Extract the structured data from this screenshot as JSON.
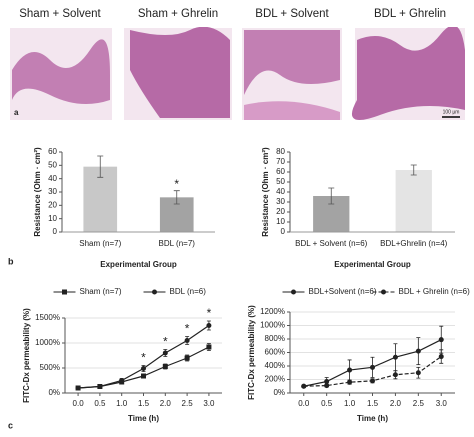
{
  "panel_a": {
    "letter": "a",
    "labels": [
      "Sham + Solvent",
      "Sham + Ghrelin",
      "BDL + Solvent",
      "BDL + Ghrelin"
    ],
    "scale_bar": "100 µm"
  },
  "panel_b": {
    "letter": "b"
  },
  "panel_c": {
    "letter": "c"
  },
  "chart_data": [
    {
      "type": "bar",
      "xlabel": "Experimental Group",
      "ylabel": "Resistance (Ohm · cm²)",
      "categories": [
        "Sham (n=7)",
        "BDL (n=7)"
      ],
      "values": [
        49,
        26
      ],
      "errors": [
        8,
        5
      ],
      "colors": [
        "#c8c8c8",
        "#a3a3a3"
      ],
      "ylim": [
        0,
        60
      ],
      "yticks": [
        0,
        10,
        20,
        30,
        40,
        50,
        60
      ],
      "significance_label": "*",
      "significant_categories": [
        "BDL (n=7)"
      ]
    },
    {
      "type": "bar",
      "xlabel": "Experimental Group",
      "ylabel": "Resistance (Ohm · cm²)",
      "categories": [
        "BDL + Solvent (n=6)",
        "BDL+Ghrelin (n=4)"
      ],
      "values": [
        36,
        62
      ],
      "errors": [
        8,
        5
      ],
      "colors": [
        "#a3a3a3",
        "#e4e4e4"
      ],
      "ylim": [
        0,
        80
      ],
      "yticks": [
        0,
        10,
        20,
        30,
        40,
        50,
        60,
        70,
        80
      ]
    },
    {
      "type": "line",
      "xlabel": "Time (h)",
      "ylabel": "FITC-Dx permeability (%)",
      "legend": "top",
      "grid": true,
      "x": [
        0,
        0.5,
        1,
        1.5,
        2,
        2.5,
        3
      ],
      "xlim": [
        -0.3,
        3.3
      ],
      "xticks": [
        {
          "value": 0,
          "label": "0.0"
        },
        {
          "value": 0.5,
          "label": "0.5"
        },
        {
          "value": 1,
          "label": "1.0"
        },
        {
          "value": 1.5,
          "label": "1.5"
        },
        {
          "value": 2,
          "label": "2.0"
        },
        {
          "value": 2.5,
          "label": "2.5"
        },
        {
          "value": 3,
          "label": "3.0"
        }
      ],
      "ylim": [
        0,
        1500
      ],
      "yticks": [
        {
          "value": 0,
          "label": "0%"
        },
        {
          "value": 500,
          "label": "500%"
        },
        {
          "value": 1000,
          "label": "1000%"
        },
        {
          "value": 1500,
          "label": "1500%"
        }
      ],
      "series": [
        {
          "name": "Sham (n=7)",
          "color": "#222222",
          "marker": "square",
          "dashed": false,
          "values": [
            100,
            130,
            220,
            340,
            530,
            700,
            920
          ],
          "errors": [
            10,
            15,
            30,
            40,
            50,
            60,
            70
          ]
        },
        {
          "name": "BDL (n=6)",
          "color": "#222222",
          "marker": "circle",
          "dashed": false,
          "values": [
            100,
            130,
            250,
            490,
            800,
            1050,
            1350
          ],
          "errors": [
            10,
            15,
            40,
            60,
            70,
            80,
            90
          ]
        }
      ],
      "significance_label": "*",
      "significant_x": [
        1.5,
        2,
        2.5,
        3
      ]
    },
    {
      "type": "line",
      "xlabel": "Time (h)",
      "ylabel": "FITC-Dx permeability (%)",
      "legend": "top",
      "grid": true,
      "x": [
        0,
        0.5,
        1,
        1.5,
        2,
        2.5,
        3
      ],
      "xlim": [
        -0.3,
        3.3
      ],
      "xticks": [
        {
          "value": 0,
          "label": "0.0"
        },
        {
          "value": 0.5,
          "label": "0.5"
        },
        {
          "value": 1,
          "label": "1.0"
        },
        {
          "value": 1.5,
          "label": "1.5"
        },
        {
          "value": 2,
          "label": "2.0"
        },
        {
          "value": 2.5,
          "label": "2.5"
        },
        {
          "value": 3,
          "label": "3.0"
        }
      ],
      "ylim": [
        0,
        1200
      ],
      "yticks": [
        {
          "value": 0,
          "label": "0%"
        },
        {
          "value": 200,
          "label": "200%"
        },
        {
          "value": 400,
          "label": "400%"
        },
        {
          "value": 600,
          "label": "600%"
        },
        {
          "value": 800,
          "label": "800%"
        },
        {
          "value": 1000,
          "label": "1000%"
        },
        {
          "value": 1200,
          "label": "1200%"
        }
      ],
      "series": [
        {
          "name": "BDL+Solvent (n=6)",
          "color": "#222222",
          "marker": "circle",
          "dashed": false,
          "values": [
            100,
            170,
            340,
            380,
            530,
            620,
            790
          ],
          "errors": [
            20,
            60,
            150,
            150,
            200,
            200,
            200
          ]
        },
        {
          "name": "BDL + Ghrelin (n=6)",
          "color": "#222222",
          "marker": "circle",
          "dashed": true,
          "values": [
            100,
            110,
            160,
            180,
            270,
            300,
            540
          ],
          "errors": [
            10,
            20,
            30,
            30,
            60,
            80,
            100
          ]
        }
      ]
    }
  ]
}
